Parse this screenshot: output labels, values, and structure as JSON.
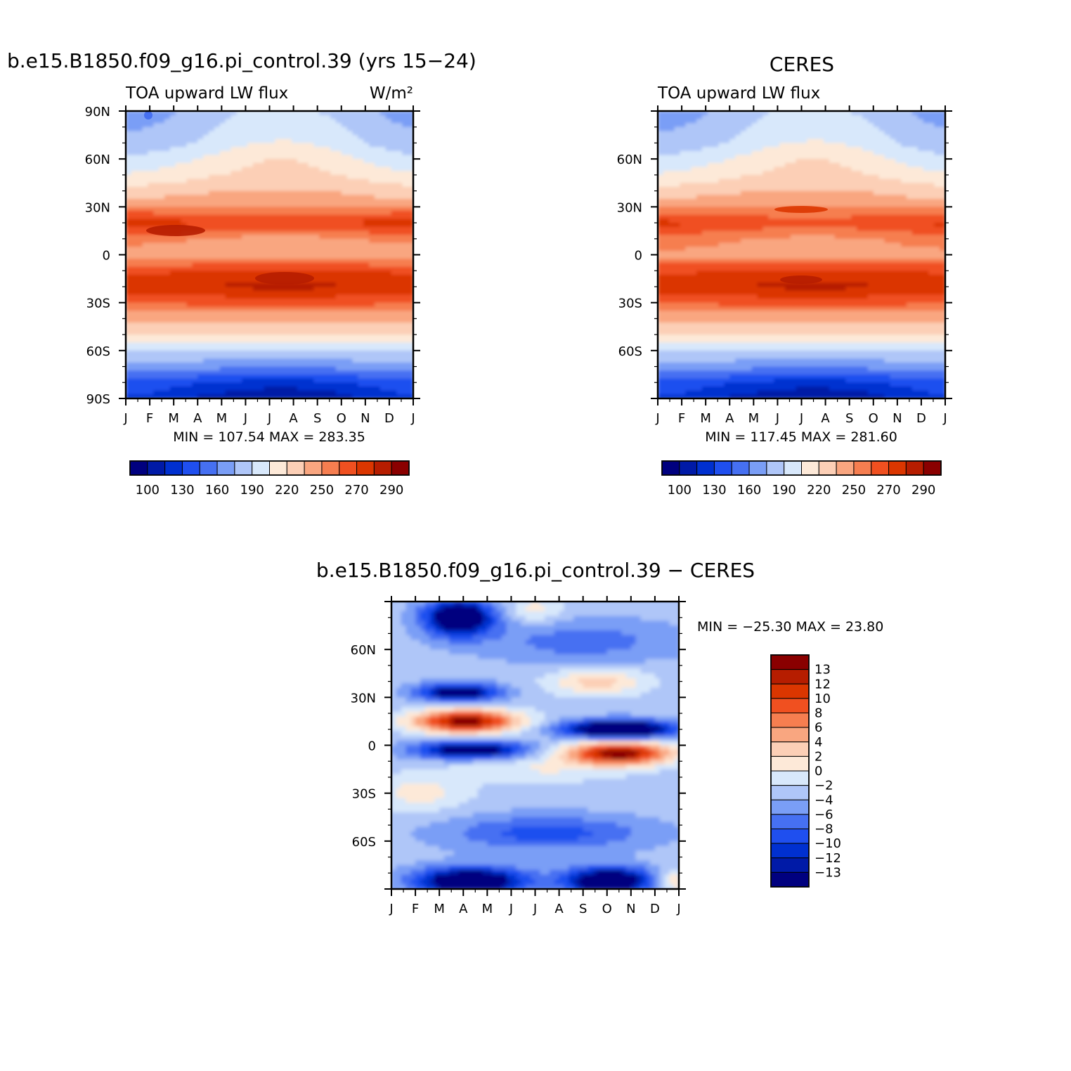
{
  "chart_data": [
    {
      "type": "heatmap",
      "panel": "model",
      "title": "b.e15.B1850.f09_g16.pi_control.39 (yrs 15−24)",
      "subtitle_left": "TOA upward LW flux",
      "subtitle_right": "W/m²",
      "xlabel": "",
      "ylabel": "",
      "x_ticks": [
        "J",
        "F",
        "M",
        "A",
        "M",
        "J",
        "J",
        "A",
        "S",
        "O",
        "N",
        "D",
        "J"
      ],
      "y_ticks": [
        "90N",
        "60N",
        "30N",
        "0",
        "30S",
        "60S",
        "90S"
      ],
      "y_range": [
        -90,
        90
      ],
      "min_max_text": "MIN = 107.54 MAX = 283.35",
      "colorbar": {
        "orientation": "horizontal",
        "labels": [
          "100",
          "130",
          "160",
          "190",
          "220",
          "250",
          "270",
          "290"
        ],
        "colors": [
          "#00007f",
          "#001aa7",
          "#0030d0",
          "#1f4fef",
          "#4670f2",
          "#7a9ef6",
          "#afc6f8",
          "#d8e8fb",
          "#fde9d8",
          "#fccfb6",
          "#f9a680",
          "#f67e50",
          "#f05020",
          "#db3600",
          "#b61d00",
          "#8a0000"
        ]
      },
      "profile_lat": [
        -90,
        -80,
        -70,
        -60,
        -50,
        -40,
        -30,
        -20,
        -10,
        0,
        10,
        20,
        30,
        40,
        50,
        60,
        70,
        80,
        90
      ],
      "profile_flux": [
        118,
        135,
        168,
        190,
        218,
        242,
        262,
        277,
        268,
        245,
        252,
        272,
        250,
        232,
        212,
        198,
        184,
        178,
        172
      ]
    },
    {
      "type": "heatmap",
      "panel": "obs",
      "title": "CERES",
      "subtitle_left": "TOA upward LW flux",
      "x_ticks": [
        "J",
        "F",
        "M",
        "A",
        "M",
        "J",
        "J",
        "A",
        "S",
        "O",
        "N",
        "D",
        "J"
      ],
      "y_ticks": [
        "60N",
        "30N",
        "0",
        "30S",
        "60S"
      ],
      "y_range": [
        -90,
        90
      ],
      "min_max_text": "MIN = 117.45 MAX = 281.60",
      "colorbar": {
        "orientation": "horizontal",
        "labels": [
          "100",
          "130",
          "160",
          "190",
          "220",
          "250",
          "270",
          "290"
        ]
      }
    },
    {
      "type": "heatmap",
      "panel": "difference",
      "title": "b.e15.B1850.f09_g16.pi_control.39 − CERES",
      "x_ticks": [
        "J",
        "F",
        "M",
        "A",
        "M",
        "J",
        "J",
        "A",
        "S",
        "O",
        "N",
        "D",
        "J"
      ],
      "y_ticks": [
        "60N",
        "30N",
        "0",
        "30S",
        "60S"
      ],
      "y_range": [
        -90,
        90
      ],
      "min_max_text": "MIN = −25.30 MAX =  23.80",
      "colorbar": {
        "orientation": "vertical",
        "labels": [
          "13",
          "12",
          "10",
          "8",
          "6",
          "4",
          "2",
          "0",
          "−2",
          "−4",
          "−6",
          "−8",
          "−10",
          "−12",
          "−13"
        ],
        "colors": [
          "#8a0000",
          "#b61d00",
          "#db3600",
          "#f05020",
          "#f67e50",
          "#f9a680",
          "#fccfb6",
          "#fde9d8",
          "#d8e8fb",
          "#afc6f8",
          "#7a9ef6",
          "#4670f2",
          "#1f4fef",
          "#0030d0",
          "#001aa7",
          "#00007f"
        ]
      }
    }
  ]
}
